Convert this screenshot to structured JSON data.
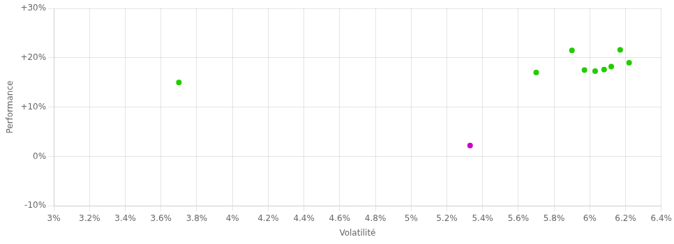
{
  "chart_data": {
    "type": "scatter",
    "xlabel": "Volatilité",
    "ylabel": "Performance",
    "xlim": [
      0.03,
      0.064
    ],
    "ylim": [
      -0.1,
      0.3
    ],
    "xticks": [
      {
        "value": 0.03,
        "label": "3%"
      },
      {
        "value": 0.032,
        "label": "3.2%"
      },
      {
        "value": 0.034,
        "label": "3.4%"
      },
      {
        "value": 0.036,
        "label": "3.6%"
      },
      {
        "value": 0.038,
        "label": "3.8%"
      },
      {
        "value": 0.04,
        "label": "4%"
      },
      {
        "value": 0.042,
        "label": "4.2%"
      },
      {
        "value": 0.044,
        "label": "4.4%"
      },
      {
        "value": 0.046,
        "label": "4.6%"
      },
      {
        "value": 0.048,
        "label": "4.8%"
      },
      {
        "value": 0.05,
        "label": "5%"
      },
      {
        "value": 0.052,
        "label": "5.2%"
      },
      {
        "value": 0.054,
        "label": "5.4%"
      },
      {
        "value": 0.056,
        "label": "5.6%"
      },
      {
        "value": 0.058,
        "label": "5.8%"
      },
      {
        "value": 0.06,
        "label": "6%"
      },
      {
        "value": 0.062,
        "label": "6.2%"
      },
      {
        "value": 0.064,
        "label": "6.4%"
      }
    ],
    "yticks": [
      {
        "value": -0.1,
        "label": "-10%"
      },
      {
        "value": 0.0,
        "label": "0%"
      },
      {
        "value": 0.1,
        "label": "+10%"
      },
      {
        "value": 0.2,
        "label": "+20%"
      },
      {
        "value": 0.3,
        "label": "+30%"
      }
    ],
    "grid": true,
    "series": [
      {
        "color": "#22cc00",
        "x": [
          0.037,
          0.057,
          0.059,
          0.0597,
          0.0603,
          0.0608,
          0.0612,
          0.0617,
          0.0622
        ],
        "values": [
          0.15,
          0.17,
          0.215,
          0.175,
          0.173,
          0.176,
          0.182,
          0.216,
          0.19
        ]
      },
      {
        "color": "#cc00cc",
        "x": [
          0.0533
        ],
        "values": [
          0.022
        ]
      }
    ]
  }
}
